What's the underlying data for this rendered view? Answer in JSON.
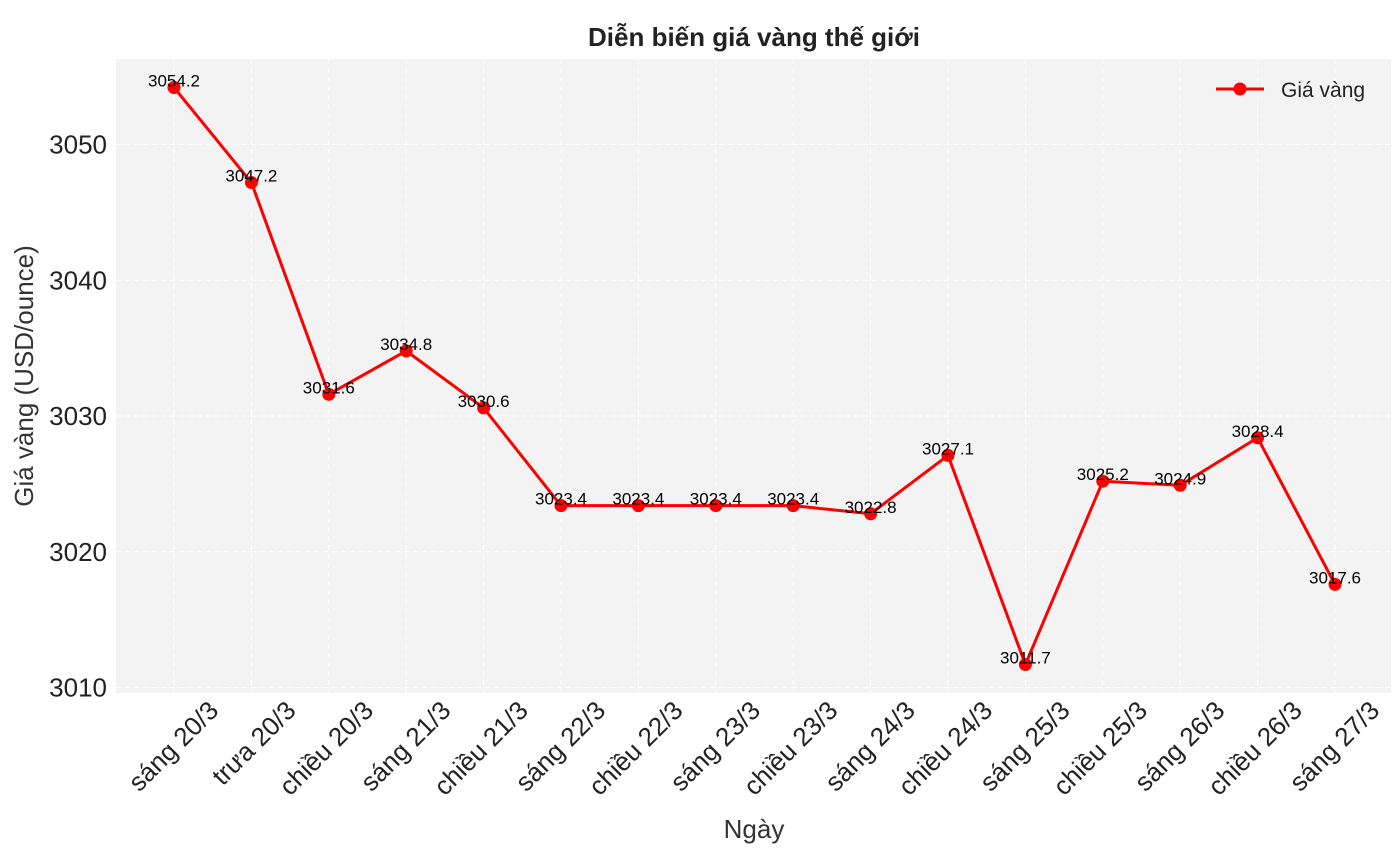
{
  "chart_data": {
    "type": "line",
    "title": "Diễn biến giá vàng thế giới",
    "xlabel": "Ngày",
    "ylabel": "Giá vàng (USD/ounce)",
    "categories": [
      "sáng 20/3",
      "trưa 20/3",
      "chiều 20/3",
      "sáng 21/3",
      "chiều 21/3",
      "sáng 22/3",
      "chiều 22/3",
      "sáng 23/3",
      "chiều 23/3",
      "sáng 24/3",
      "chiều 24/3",
      "sáng 25/3",
      "chiều 25/3",
      "sáng 26/3",
      "chiều 26/3",
      "sáng 27/3"
    ],
    "series": [
      {
        "name": "Giá vàng",
        "values": [
          3054.2,
          3047.2,
          3031.6,
          3034.8,
          3030.6,
          3023.4,
          3023.4,
          3023.4,
          3023.4,
          3022.8,
          3027.1,
          3011.7,
          3025.2,
          3024.9,
          3028.4,
          3017.6
        ],
        "labels": [
          "3054.2",
          "3047.2",
          "3031.6",
          "3034.8",
          "3030.6",
          "3023.4",
          "3023.4",
          "3023.4",
          "3023.4",
          "3022.8",
          "3027.1",
          "3011.7",
          "3025.2",
          "3024.9",
          "3028.4",
          "3017.6"
        ],
        "color": "#ff0000"
      }
    ],
    "ylim": [
      3009.6,
      3056.3
    ],
    "yticks": [
      3010,
      3020,
      3030,
      3040,
      3050
    ],
    "ytick_labels": [
      "3010",
      "3020",
      "3030",
      "3040",
      "3050"
    ],
    "grid": true,
    "legend": "top-right",
    "plot_background": "#f3f3f3"
  }
}
